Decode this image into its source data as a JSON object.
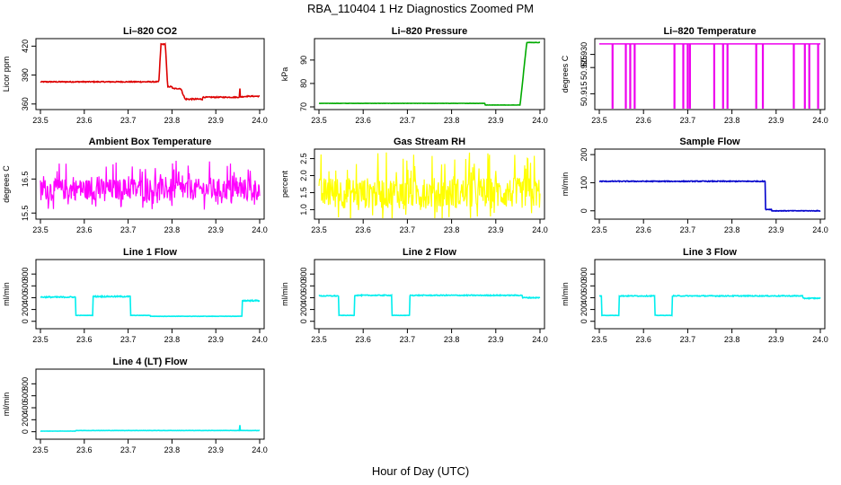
{
  "title": "RBA_110404  1 Hz Diagnostics Zoomed PM",
  "xlabel": "Hour of Day (UTC)",
  "chart_data": [
    {
      "id": "co2",
      "type": "line",
      "title": "Li–820 CO2",
      "ylabel": "Licor ppm",
      "color": "#dd0000",
      "xlim": [
        23.5,
        24.0
      ],
      "ylim": [
        357,
        425
      ],
      "yticks": [
        360,
        390,
        420
      ],
      "ytick_labels": [
        "360",
        "390",
        "420"
      ],
      "xticks": [
        23.5,
        23.6,
        23.7,
        23.8,
        23.9,
        24.0
      ],
      "xtick_labels": [
        "23.5",
        "23.6",
        "23.7",
        "23.8",
        "23.9",
        "24.0"
      ],
      "segments": [
        [
          23.5,
          23.77,
          383,
          1
        ],
        [
          23.775,
          23.785,
          422,
          1
        ],
        [
          23.79,
          23.8,
          378,
          1
        ],
        [
          23.8,
          23.82,
          376,
          1
        ],
        [
          23.83,
          23.87,
          365,
          1.5
        ],
        [
          23.87,
          23.95,
          367,
          1
        ],
        [
          23.97,
          24.0,
          368,
          1
        ]
      ],
      "events": [
        [
          23.955,
          376
        ]
      ]
    },
    {
      "id": "pressure",
      "type": "line",
      "title": "Li–820 Pressure",
      "ylabel": "kPa",
      "color": "#00aa00",
      "xlim": [
        23.5,
        24.0
      ],
      "ylim": [
        70,
        98
      ],
      "yticks": [
        70,
        80,
        90
      ],
      "ytick_labels": [
        "70",
        "80",
        "90"
      ],
      "xticks": [
        23.5,
        23.6,
        23.7,
        23.8,
        23.9,
        24.0
      ],
      "xtick_labels": [
        "23.5",
        "23.6",
        "23.7",
        "23.8",
        "23.9",
        "24.0"
      ],
      "segments": [
        [
          23.5,
          23.875,
          71.5,
          0.1
        ],
        [
          23.875,
          23.955,
          70.8,
          0.1
        ],
        [
          23.97,
          24.0,
          97.5,
          0.2
        ]
      ],
      "events": []
    },
    {
      "id": "temperature",
      "type": "line",
      "title": "Li–820 Temperature",
      "ylabel": "degrees C",
      "color": "#ee00ee",
      "xlim": [
        23.5,
        24.0
      ],
      "ylim": [
        50.91,
        50.935
      ],
      "yticks": [
        50.915,
        50.925,
        50.93
      ],
      "ytick_labels": [
        "50.915",
        "50.925",
        "50.930"
      ],
      "xticks": [
        23.5,
        23.6,
        23.7,
        23.8,
        23.9,
        24.0
      ],
      "xtick_labels": [
        "23.5",
        "23.6",
        "23.7",
        "23.8",
        "23.9",
        "24.0"
      ],
      "baseline": 50.934,
      "dropouts": [
        23.53,
        23.56,
        23.57,
        23.58,
        23.67,
        23.69,
        23.7,
        23.705,
        23.76,
        23.78,
        23.79,
        23.855,
        23.87,
        23.94,
        23.965,
        23.975,
        23.995
      ]
    },
    {
      "id": "ambient",
      "type": "line",
      "title": "Ambient Box Temperature",
      "ylabel": "degrees C",
      "color": "#ff00ff",
      "xlim": [
        23.5,
        24.0
      ],
      "ylim": [
        15.4,
        17.3
      ],
      "yticks": [
        15.5,
        16.5
      ],
      "ytick_labels": [
        "15.5",
        "16.5"
      ],
      "xticks": [
        23.5,
        23.6,
        23.7,
        23.8,
        23.9,
        24.0
      ],
      "xtick_labels": [
        "23.5",
        "23.6",
        "23.7",
        "23.8",
        "23.9",
        "24.0"
      ],
      "segments": [
        [
          23.5,
          24.0,
          16.1,
          0.9
        ]
      ],
      "events": []
    },
    {
      "id": "rh",
      "type": "line",
      "title": "Gas Stream RH",
      "ylabel": "percent",
      "color": "#ffff00",
      "xlim": [
        23.5,
        24.0
      ],
      "ylim": [
        0.8,
        2.7
      ],
      "yticks": [
        1.0,
        1.5,
        2.0,
        2.5
      ],
      "ytick_labels": [
        "1.0",
        "1.5",
        "2.0",
        "2.5"
      ],
      "xticks": [
        23.5,
        23.6,
        23.7,
        23.8,
        23.9,
        24.0
      ],
      "xtick_labels": [
        "23.5",
        "23.6",
        "23.7",
        "23.8",
        "23.9",
        "24.0"
      ],
      "segments": [
        [
          23.5,
          24.0,
          1.35,
          1.3
        ]
      ],
      "events": []
    },
    {
      "id": "sample",
      "type": "line",
      "title": "Sample Flow",
      "ylabel": "ml/min",
      "color": "#0000cc",
      "xlim": [
        23.5,
        24.0
      ],
      "ylim": [
        -20,
        210
      ],
      "yticks": [
        0,
        100,
        200
      ],
      "ytick_labels": [
        "0",
        "100",
        "200"
      ],
      "xticks": [
        23.5,
        23.6,
        23.7,
        23.8,
        23.9,
        24.0
      ],
      "xtick_labels": [
        "23.5",
        "23.6",
        "23.7",
        "23.8",
        "23.9",
        "24.0"
      ],
      "segments": [
        [
          23.5,
          23.875,
          105,
          3
        ],
        [
          23.875,
          23.89,
          5,
          2
        ],
        [
          23.89,
          24.0,
          0,
          2
        ]
      ],
      "events": []
    },
    {
      "id": "line1",
      "type": "line",
      "title": "Line 1 Flow",
      "ylabel": "ml/min",
      "color": "#00eeee",
      "xlim": [
        23.5,
        24.0
      ],
      "ylim": [
        -80,
        1000
      ],
      "yticks": [
        0,
        200,
        400,
        600,
        800
      ],
      "ytick_labels": [
        "0",
        "200",
        "400",
        "600",
        "800"
      ],
      "xticks": [
        23.5,
        23.6,
        23.7,
        23.8,
        23.9,
        24.0
      ],
      "xtick_labels": [
        "23.5",
        "23.6",
        "23.7",
        "23.8",
        "23.9",
        "24.0"
      ],
      "segments": [
        [
          23.5,
          23.58,
          410,
          20
        ],
        [
          23.58,
          23.62,
          100,
          5
        ],
        [
          23.62,
          23.705,
          420,
          20
        ],
        [
          23.705,
          23.75,
          100,
          5
        ],
        [
          23.75,
          23.96,
          85,
          5
        ],
        [
          23.96,
          24.0,
          350,
          20
        ]
      ],
      "events": []
    },
    {
      "id": "line2",
      "type": "line",
      "title": "Line 2 Flow",
      "ylabel": "ml/min",
      "color": "#00eeee",
      "xlim": [
        23.5,
        24.0
      ],
      "ylim": [
        -80,
        1000
      ],
      "yticks": [
        0,
        200,
        400,
        600,
        800
      ],
      "ytick_labels": [
        "0",
        "200",
        "400",
        "600",
        "800"
      ],
      "xticks": [
        23.5,
        23.6,
        23.7,
        23.8,
        23.9,
        24.0
      ],
      "xtick_labels": [
        "23.5",
        "23.6",
        "23.7",
        "23.8",
        "23.9",
        "24.0"
      ],
      "segments": [
        [
          23.5,
          23.545,
          430,
          15
        ],
        [
          23.545,
          23.58,
          100,
          5
        ],
        [
          23.58,
          23.665,
          440,
          15
        ],
        [
          23.665,
          23.705,
          100,
          5
        ],
        [
          23.705,
          23.96,
          440,
          15
        ],
        [
          23.96,
          24.0,
          400,
          15
        ]
      ],
      "events": []
    },
    {
      "id": "line3",
      "type": "line",
      "title": "Line 3 Flow",
      "ylabel": "ml/min",
      "color": "#00eeee",
      "xlim": [
        23.5,
        24.0
      ],
      "ylim": [
        -80,
        1000
      ],
      "yticks": [
        0,
        200,
        400,
        600,
        800
      ],
      "ytick_labels": [
        "0",
        "200",
        "400",
        "600",
        "800"
      ],
      "xticks": [
        23.5,
        23.6,
        23.7,
        23.8,
        23.9,
        24.0
      ],
      "xtick_labels": [
        "23.5",
        "23.6",
        "23.7",
        "23.8",
        "23.9",
        "24.0"
      ],
      "segments": [
        [
          23.5,
          23.505,
          430,
          10
        ],
        [
          23.505,
          23.545,
          100,
          5
        ],
        [
          23.545,
          23.625,
          430,
          15
        ],
        [
          23.625,
          23.665,
          100,
          5
        ],
        [
          23.665,
          23.96,
          430,
          15
        ],
        [
          23.96,
          24.0,
          390,
          15
        ]
      ],
      "events": []
    },
    {
      "id": "line4",
      "type": "line",
      "title": "Line 4 (LT) Flow",
      "ylabel": "ml/min",
      "color": "#00eeee",
      "xlim": [
        23.5,
        24.0
      ],
      "ylim": [
        -80,
        1000
      ],
      "yticks": [
        0,
        200,
        400,
        600,
        800
      ],
      "ytick_labels": [
        "0",
        "200",
        "400",
        "600",
        "800"
      ],
      "xticks": [
        23.5,
        23.6,
        23.7,
        23.8,
        23.9,
        24.0
      ],
      "xtick_labels": [
        "23.5",
        "23.6",
        "23.7",
        "23.8",
        "23.9",
        "24.0"
      ],
      "segments": [
        [
          23.5,
          23.58,
          10,
          3
        ],
        [
          23.58,
          24.0,
          20,
          4
        ]
      ],
      "events": [
        [
          23.955,
          110
        ]
      ]
    }
  ]
}
